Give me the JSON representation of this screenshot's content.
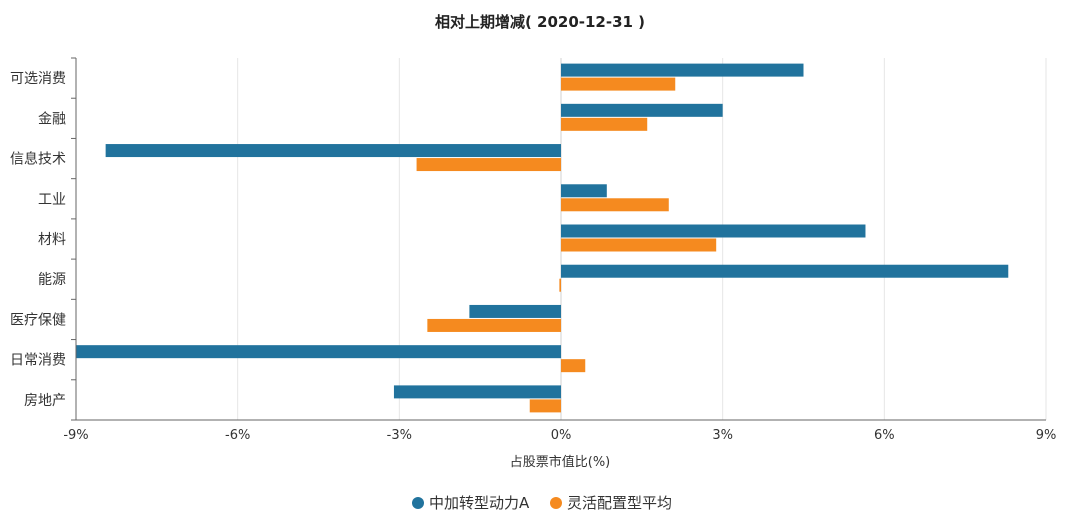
{
  "chart_data": {
    "type": "bar",
    "orientation": "horizontal",
    "title": "相对上期增减( 2020-12-31 )",
    "xlabel": "占股票市值比(%)",
    "ylabel": "",
    "xlim": [
      -9,
      9
    ],
    "xticks": [
      -9,
      -6,
      -3,
      0,
      3,
      6,
      9
    ],
    "xtick_labels": [
      "-9%",
      "-6%",
      "-3%",
      "0%",
      "3%",
      "6%",
      "9%"
    ],
    "grid": true,
    "legend_position": "bottom-center",
    "categories": [
      "可选消费",
      "金融",
      "信息技术",
      "工业",
      "材料",
      "能源",
      "医疗保健",
      "日常消费",
      "房地产"
    ],
    "series": [
      {
        "name": "中加转型动力A",
        "color": "#21739d",
        "values": [
          4.5,
          3.0,
          -8.45,
          0.85,
          5.65,
          8.3,
          -1.7,
          -9.0,
          -3.1
        ]
      },
      {
        "name": "灵活配置型平均",
        "color": "#f58a1f",
        "values": [
          2.12,
          1.6,
          -2.68,
          2.0,
          2.88,
          -0.03,
          -2.48,
          0.45,
          -0.58
        ]
      }
    ]
  }
}
